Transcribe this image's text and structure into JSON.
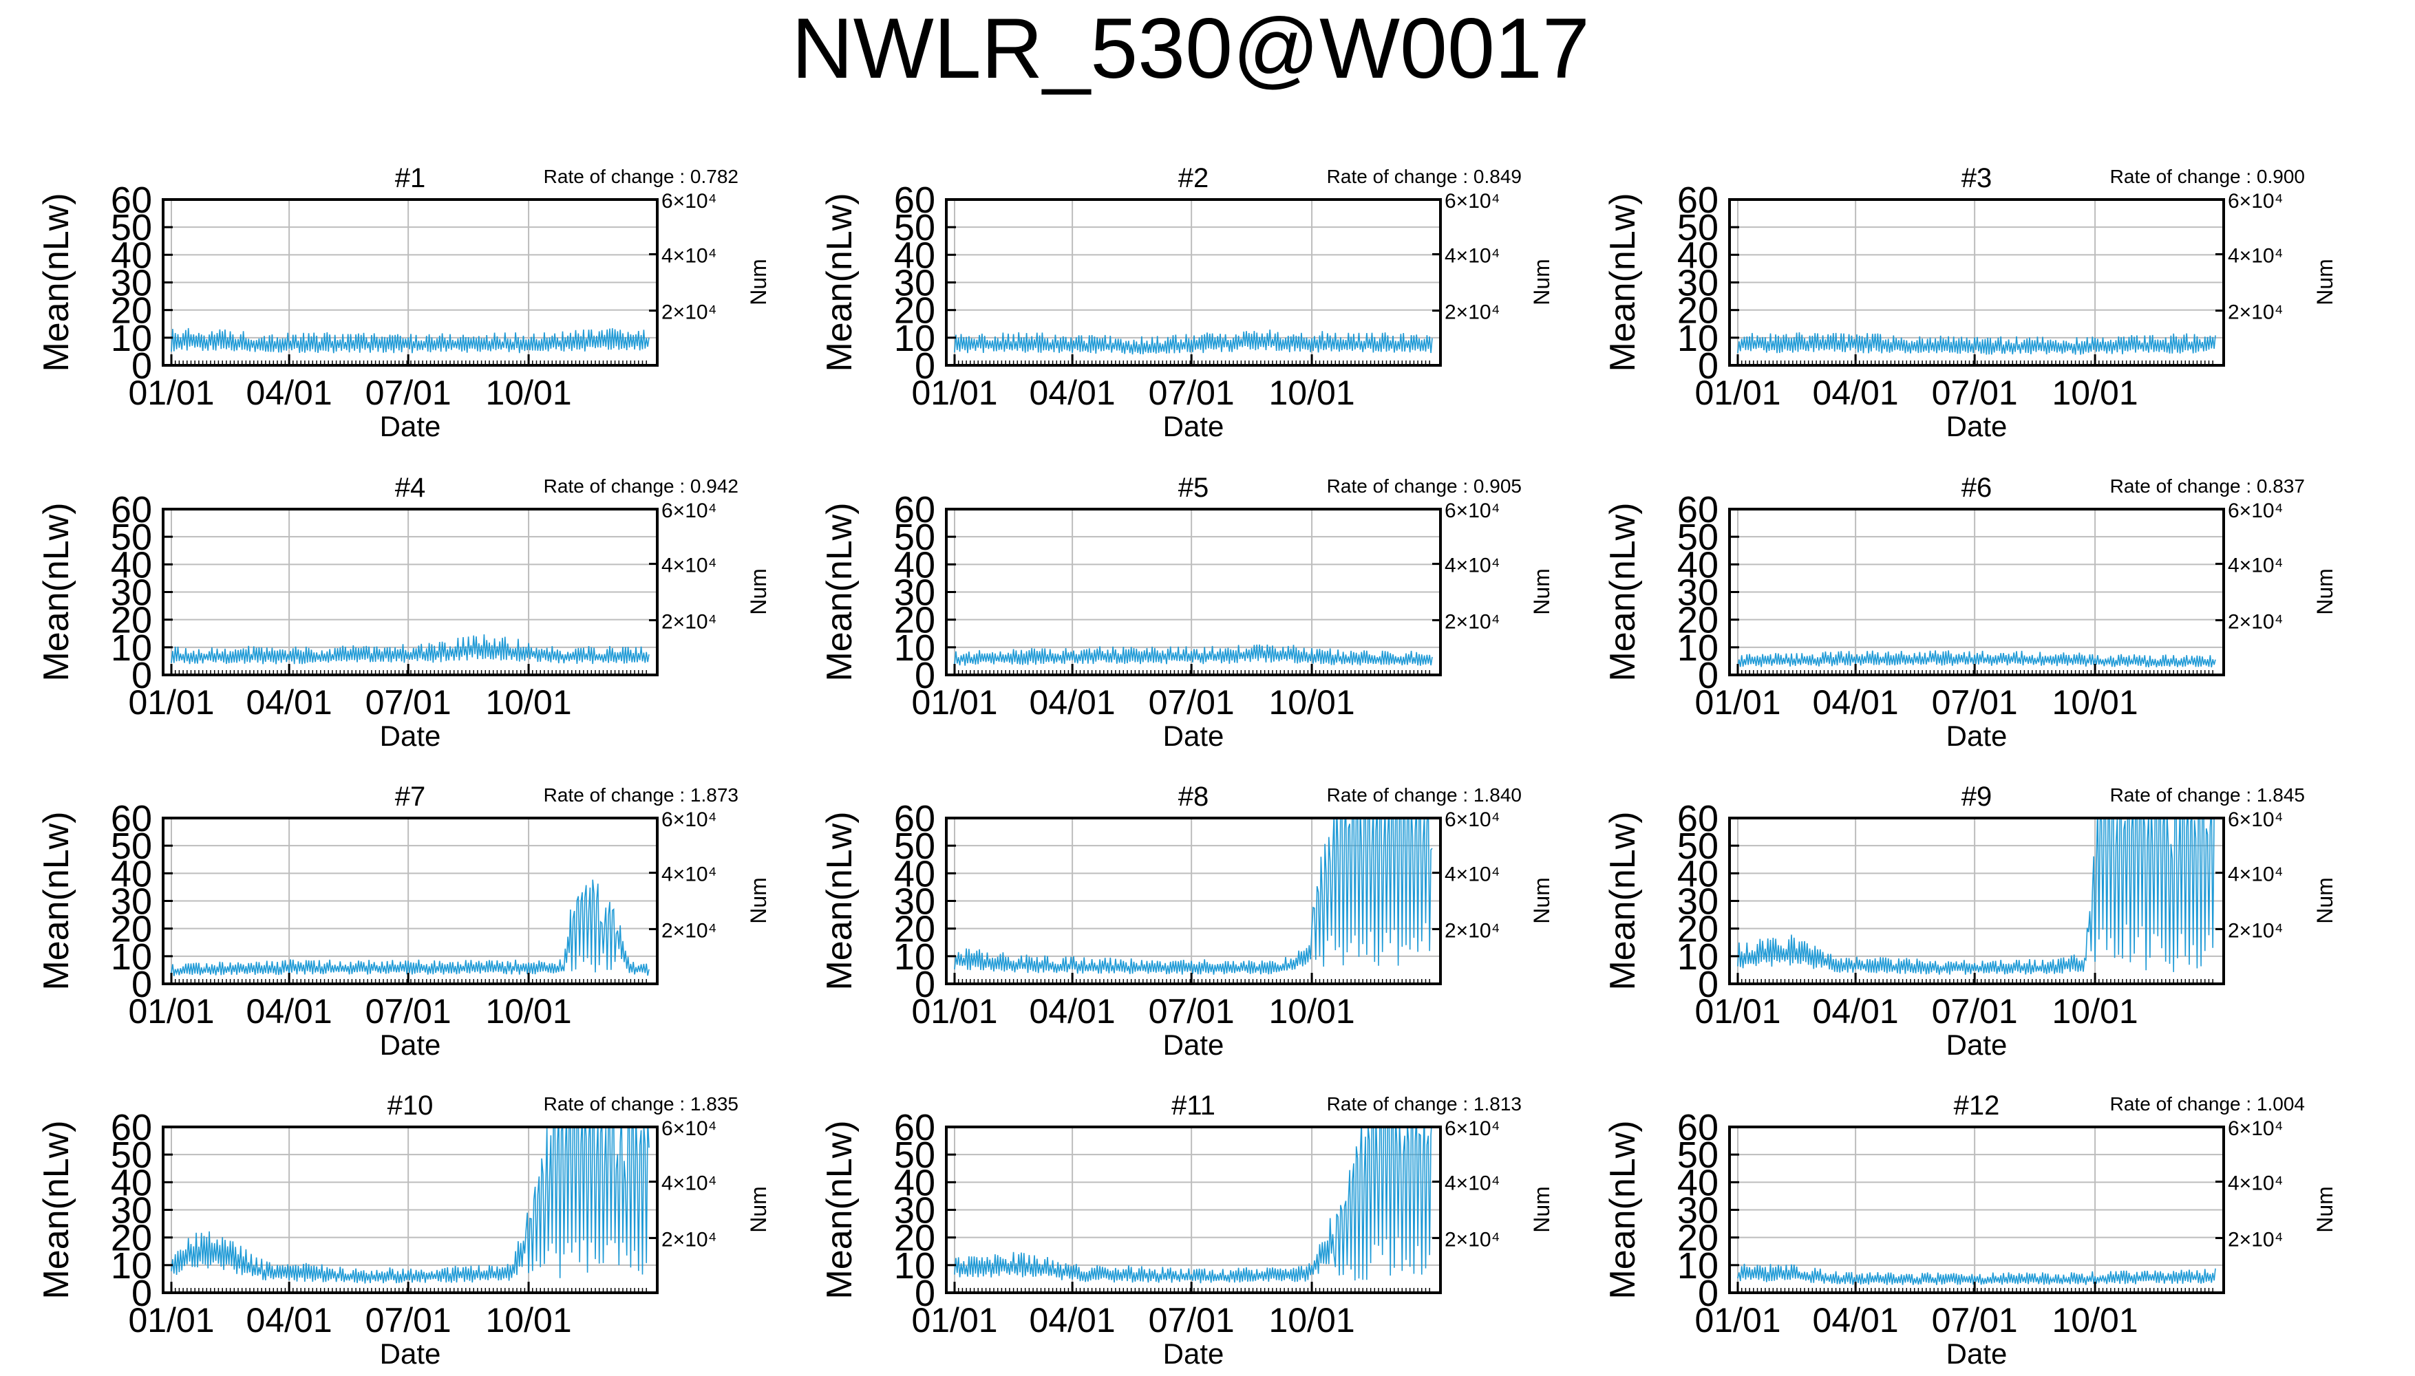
{
  "title": "NWLR_530@W0017",
  "series_color": "#1f9ad6",
  "chart_data": [
    {
      "type": "line",
      "title": "#1",
      "rate_label": "Rate of change : 0.782",
      "xlabel": "Date",
      "ylabel": "Mean(nLw)",
      "y2label": "Num",
      "xticks": [
        "01/01",
        "04/01",
        "07/01",
        "10/01"
      ],
      "yticks": [
        "0",
        "10",
        "20",
        "30",
        "40",
        "50",
        "60"
      ],
      "y2ticks": [
        "2×10⁴",
        "4×10⁴",
        "6×10⁴"
      ],
      "ylim": [
        0,
        60
      ],
      "grid": true,
      "profile": [
        [
          0,
          9
        ],
        [
          30,
          9
        ],
        [
          90,
          8
        ],
        [
          150,
          8
        ],
        [
          210,
          8
        ],
        [
          270,
          8
        ],
        [
          330,
          9
        ],
        [
          365,
          9
        ]
      ]
    },
    {
      "type": "line",
      "title": "#2",
      "rate_label": "Rate of change : 0.849",
      "xlabel": "Date",
      "ylabel": "Mean(nLw)",
      "y2label": "Num",
      "xticks": [
        "01/01",
        "04/01",
        "07/01",
        "10/01"
      ],
      "yticks": [
        "0",
        "10",
        "20",
        "30",
        "40",
        "50",
        "60"
      ],
      "y2ticks": [
        "2×10⁴",
        "4×10⁴",
        "6×10⁴"
      ],
      "ylim": [
        0,
        60
      ],
      "grid": true,
      "profile": [
        [
          0,
          8
        ],
        [
          60,
          8
        ],
        [
          150,
          7
        ],
        [
          230,
          9
        ],
        [
          300,
          8
        ],
        [
          365,
          8
        ]
      ]
    },
    {
      "type": "line",
      "title": "#3",
      "rate_label": "Rate of change : 0.900",
      "xlabel": "Date",
      "ylabel": "Mean(nLw)",
      "y2label": "Num",
      "xticks": [
        "01/01",
        "04/01",
        "07/01",
        "10/01"
      ],
      "yticks": [
        "0",
        "10",
        "20",
        "30",
        "40",
        "50",
        "60"
      ],
      "y2ticks": [
        "2×10⁴",
        "4×10⁴",
        "6×10⁴"
      ],
      "ylim": [
        0,
        60
      ],
      "grid": true,
      "profile": [
        [
          0,
          8
        ],
        [
          90,
          8
        ],
        [
          180,
          7
        ],
        [
          270,
          7
        ],
        [
          365,
          8
        ]
      ]
    },
    {
      "type": "line",
      "title": "#4",
      "rate_label": "Rate of change : 0.942",
      "xlabel": "Date",
      "ylabel": "Mean(nLw)",
      "y2label": "Num",
      "xticks": [
        "01/01",
        "04/01",
        "07/01",
        "10/01"
      ],
      "yticks": [
        "0",
        "10",
        "20",
        "30",
        "40",
        "50",
        "60"
      ],
      "y2ticks": [
        "2×10⁴",
        "4×10⁴",
        "6×10⁴"
      ],
      "ylim": [
        0,
        60
      ],
      "grid": true,
      "profile": [
        [
          0,
          7
        ],
        [
          120,
          7
        ],
        [
          200,
          8
        ],
        [
          240,
          10
        ],
        [
          300,
          7
        ],
        [
          365,
          7
        ]
      ]
    },
    {
      "type": "line",
      "title": "#5",
      "rate_label": "Rate of change : 0.905",
      "xlabel": "Date",
      "ylabel": "Mean(nLw)",
      "y2label": "Num",
      "xticks": [
        "01/01",
        "04/01",
        "07/01",
        "10/01"
      ],
      "yticks": [
        "0",
        "10",
        "20",
        "30",
        "40",
        "50",
        "60"
      ],
      "y2ticks": [
        "2×10⁴",
        "4×10⁴",
        "6×10⁴"
      ],
      "ylim": [
        0,
        60
      ],
      "grid": true,
      "profile": [
        [
          0,
          6
        ],
        [
          100,
          7
        ],
        [
          200,
          7
        ],
        [
          240,
          8
        ],
        [
          300,
          6
        ],
        [
          365,
          6
        ]
      ]
    },
    {
      "type": "line",
      "title": "#6",
      "rate_label": "Rate of change : 0.837",
      "xlabel": "Date",
      "ylabel": "Mean(nLw)",
      "y2label": "Num",
      "xticks": [
        "01/01",
        "04/01",
        "07/01",
        "10/01"
      ],
      "yticks": [
        "0",
        "10",
        "20",
        "30",
        "40",
        "50",
        "60"
      ],
      "y2ticks": [
        "2×10⁴",
        "4×10⁴",
        "6×10⁴"
      ],
      "ylim": [
        0,
        60
      ],
      "grid": true,
      "profile": [
        [
          0,
          5
        ],
        [
          100,
          6
        ],
        [
          200,
          6
        ],
        [
          300,
          5
        ],
        [
          365,
          5
        ]
      ]
    },
    {
      "type": "line",
      "title": "#7",
      "rate_label": "Rate of change : 1.873",
      "xlabel": "Date",
      "ylabel": "Mean(nLw)",
      "y2label": "Num",
      "xticks": [
        "01/01",
        "04/01",
        "07/01",
        "10/01"
      ],
      "yticks": [
        "0",
        "10",
        "20",
        "30",
        "40",
        "50",
        "60"
      ],
      "y2ticks": [
        "2×10⁴",
        "4×10⁴",
        "6×10⁴"
      ],
      "ylim": [
        0,
        60
      ],
      "grid": true,
      "profile": [
        [
          0,
          5
        ],
        [
          100,
          6
        ],
        [
          200,
          6
        ],
        [
          300,
          6
        ],
        [
          305,
          20
        ],
        [
          320,
          30
        ],
        [
          340,
          22
        ],
        [
          350,
          6
        ],
        [
          365,
          5
        ]
      ]
    },
    {
      "type": "line",
      "title": "#8",
      "rate_label": "Rate of change : 1.840",
      "xlabel": "Date",
      "ylabel": "Mean(nLw)",
      "y2label": "Num",
      "xticks": [
        "01/01",
        "04/01",
        "07/01",
        "10/01"
      ],
      "yticks": [
        "0",
        "10",
        "20",
        "30",
        "40",
        "50",
        "60"
      ],
      "y2ticks": [
        "2×10⁴",
        "4×10⁴",
        "6×10⁴"
      ],
      "ylim": [
        0,
        60
      ],
      "grid": true,
      "profile": [
        [
          0,
          9
        ],
        [
          60,
          7
        ],
        [
          150,
          6
        ],
        [
          250,
          6
        ],
        [
          270,
          10
        ],
        [
          285,
          50
        ],
        [
          300,
          60
        ],
        [
          365,
          60
        ]
      ]
    },
    {
      "type": "line",
      "title": "#9",
      "rate_label": "Rate of change : 1.845",
      "xlabel": "Date",
      "ylabel": "Mean(nLw)",
      "y2label": "Num",
      "xticks": [
        "01/01",
        "04/01",
        "07/01",
        "10/01"
      ],
      "yticks": [
        "0",
        "10",
        "20",
        "30",
        "40",
        "50",
        "60"
      ],
      "y2ticks": [
        "2×10⁴",
        "4×10⁴",
        "6×10⁴"
      ],
      "ylim": [
        0,
        60
      ],
      "grid": true,
      "profile": [
        [
          0,
          10
        ],
        [
          40,
          12
        ],
        [
          80,
          7
        ],
        [
          150,
          6
        ],
        [
          240,
          6
        ],
        [
          265,
          8
        ],
        [
          275,
          50
        ],
        [
          290,
          60
        ],
        [
          330,
          55
        ]
      ]
    },
    {
      "type": "line",
      "title": "#10",
      "rate_label": "Rate of change : 1.835",
      "xlabel": "Date",
      "ylabel": "Mean(nLw)",
      "y2label": "Num",
      "xticks": [
        "01/01",
        "04/01",
        "07/01",
        "10/01"
      ],
      "yticks": [
        "0",
        "10",
        "20",
        "30",
        "40",
        "50",
        "60"
      ],
      "y2ticks": [
        "2×10⁴",
        "4×10⁴",
        "6×10⁴"
      ],
      "ylim": [
        0,
        60
      ],
      "grid": true,
      "profile": [
        [
          0,
          10
        ],
        [
          20,
          16
        ],
        [
          40,
          14
        ],
        [
          70,
          8
        ],
        [
          150,
          6
        ],
        [
          260,
          7
        ],
        [
          280,
          30
        ],
        [
          295,
          60
        ],
        [
          365,
          45
        ]
      ]
    },
    {
      "type": "line",
      "title": "#11",
      "rate_label": "Rate of change : 1.813",
      "xlabel": "Date",
      "ylabel": "Mean(nLw)",
      "y2label": "Num",
      "xticks": [
        "01/01",
        "04/01",
        "07/01",
        "10/01"
      ],
      "yticks": [
        "0",
        "10",
        "20",
        "30",
        "40",
        "50",
        "60"
      ],
      "y2ticks": [
        "2×10⁴",
        "4×10⁴",
        "6×10⁴"
      ],
      "ylim": [
        0,
        60
      ],
      "grid": true,
      "profile": [
        [
          0,
          9
        ],
        [
          50,
          10
        ],
        [
          100,
          7
        ],
        [
          200,
          6
        ],
        [
          270,
          7
        ],
        [
          290,
          20
        ],
        [
          310,
          45
        ],
        [
          330,
          60
        ],
        [
          365,
          60
        ]
      ]
    },
    {
      "type": "line",
      "title": "#12",
      "rate_label": "Rate of change : 1.004",
      "xlabel": "Date",
      "ylabel": "Mean(nLw)",
      "y2label": "Num",
      "xticks": [
        "01/01",
        "04/01",
        "07/01",
        "10/01"
      ],
      "yticks": [
        "0",
        "10",
        "20",
        "30",
        "40",
        "50",
        "60"
      ],
      "y2ticks": [
        "2×10⁴",
        "4×10⁴",
        "6×10⁴"
      ],
      "ylim": [
        0,
        60
      ],
      "grid": true,
      "profile": [
        [
          0,
          7
        ],
        [
          40,
          7
        ],
        [
          80,
          5
        ],
        [
          150,
          5
        ],
        [
          250,
          5
        ],
        [
          365,
          6
        ]
      ]
    }
  ]
}
